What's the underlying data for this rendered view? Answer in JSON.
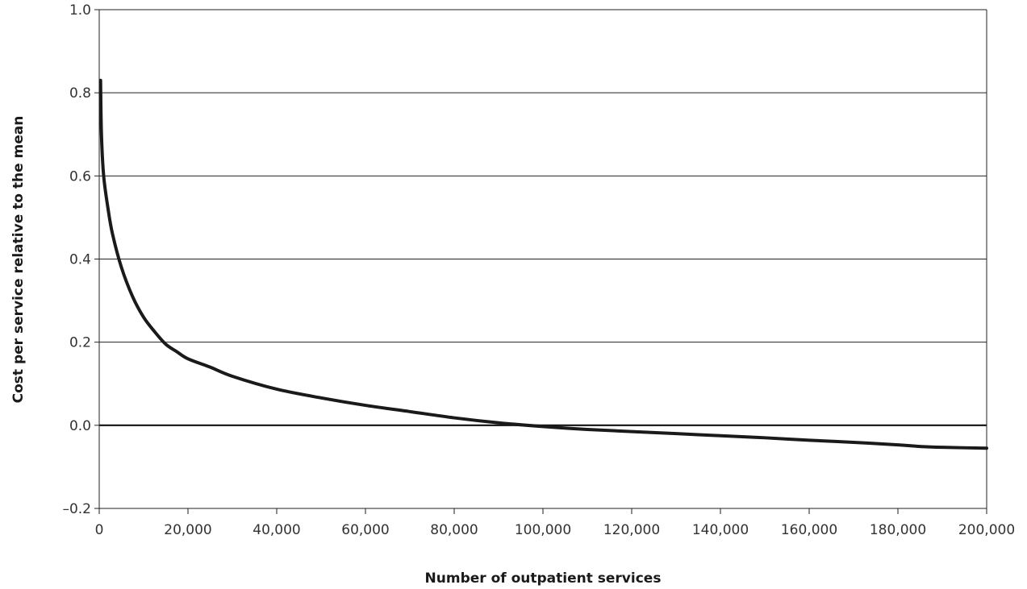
{
  "chart_data": {
    "type": "line",
    "title": "",
    "xlabel": "Number of outpatient services",
    "ylabel": "Cost per service relative to the mean",
    "xlim": [
      0,
      200000
    ],
    "ylim": [
      -0.2,
      1.0
    ],
    "x_ticks": [
      0,
      20000,
      40000,
      60000,
      80000,
      100000,
      120000,
      140000,
      160000,
      180000,
      200000
    ],
    "x_tick_labels": [
      "0",
      "20,000",
      "40,000",
      "60,000",
      "80,000",
      "100,000",
      "120,000",
      "140,000",
      "160,000",
      "180,000",
      "200,000"
    ],
    "y_ticks": [
      -0.2,
      0.0,
      0.2,
      0.4,
      0.6,
      0.8,
      1.0
    ],
    "y_tick_labels": [
      "–0.2",
      "0.0",
      "0.2",
      "0.4",
      "0.6",
      "0.8",
      "1.0"
    ],
    "grid": "horizontal",
    "legend": "none",
    "series": [
      {
        "color": "#1a1a1a",
        "points": [
          [
            300,
            0.83
          ],
          [
            500,
            0.7
          ],
          [
            1000,
            0.6
          ],
          [
            2000,
            0.52
          ],
          [
            3000,
            0.46
          ],
          [
            5000,
            0.38
          ],
          [
            7500,
            0.31
          ],
          [
            10000,
            0.26
          ],
          [
            12500,
            0.225
          ],
          [
            15000,
            0.195
          ],
          [
            17500,
            0.177
          ],
          [
            20000,
            0.16
          ],
          [
            25000,
            0.14
          ],
          [
            30000,
            0.118
          ],
          [
            40000,
            0.087
          ],
          [
            50000,
            0.066
          ],
          [
            60000,
            0.048
          ],
          [
            70000,
            0.033
          ],
          [
            80000,
            0.018
          ],
          [
            90000,
            0.006
          ],
          [
            100000,
            -0.003
          ],
          [
            110000,
            -0.01
          ],
          [
            120000,
            -0.015
          ],
          [
            130000,
            -0.02
          ],
          [
            140000,
            -0.025
          ],
          [
            150000,
            -0.03
          ],
          [
            160000,
            -0.036
          ],
          [
            170000,
            -0.041
          ],
          [
            180000,
            -0.047
          ],
          [
            185000,
            -0.051
          ],
          [
            190000,
            -0.053
          ],
          [
            200000,
            -0.055
          ]
        ]
      }
    ]
  }
}
